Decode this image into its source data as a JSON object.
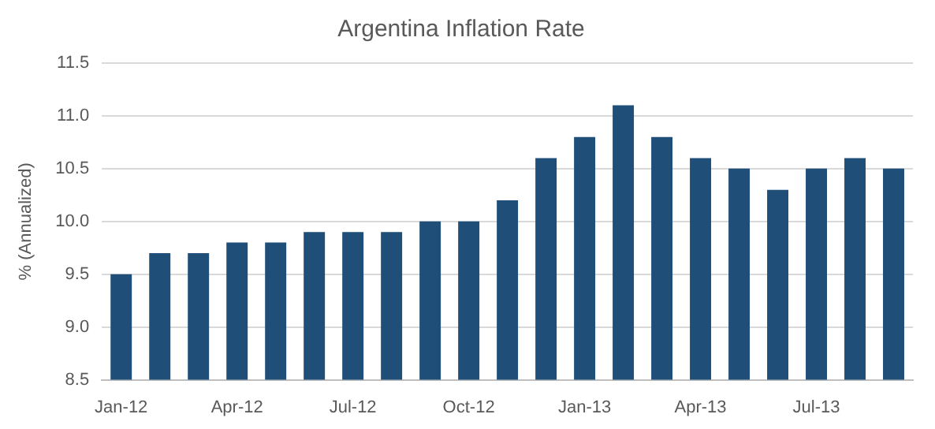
{
  "chart_data": {
    "type": "bar",
    "title": "Argentina Inflation Rate",
    "ylabel": "% (Annualized)",
    "categories": [
      "Jan-12",
      null,
      null,
      "Apr-12",
      null,
      null,
      "Jul-12",
      null,
      null,
      "Oct-12",
      null,
      null,
      "Jan-13",
      null,
      null,
      "Apr-13",
      null,
      null,
      "Jul-13",
      null,
      null
    ],
    "values": [
      9.5,
      9.7,
      9.7,
      9.8,
      9.8,
      9.9,
      9.9,
      9.9,
      10.0,
      10.0,
      10.2,
      10.6,
      10.8,
      11.1,
      10.8,
      10.6,
      10.5,
      10.3,
      10.5,
      10.6,
      10.5
    ],
    "color": "#1f4e79",
    "ylim": [
      8.5,
      11.5
    ],
    "yticks": [
      {
        "value": 8.5,
        "label": "8.5"
      },
      {
        "value": 9,
        "label": "9.0"
      },
      {
        "value": 9.5,
        "label": "9.5"
      },
      {
        "value": 10,
        "label": "10.0"
      },
      {
        "value": 10.5,
        "label": "10.5"
      },
      {
        "value": 11,
        "label": "11.0"
      },
      {
        "value": 11.5,
        "label": "11.5"
      }
    ],
    "grid": "y"
  }
}
